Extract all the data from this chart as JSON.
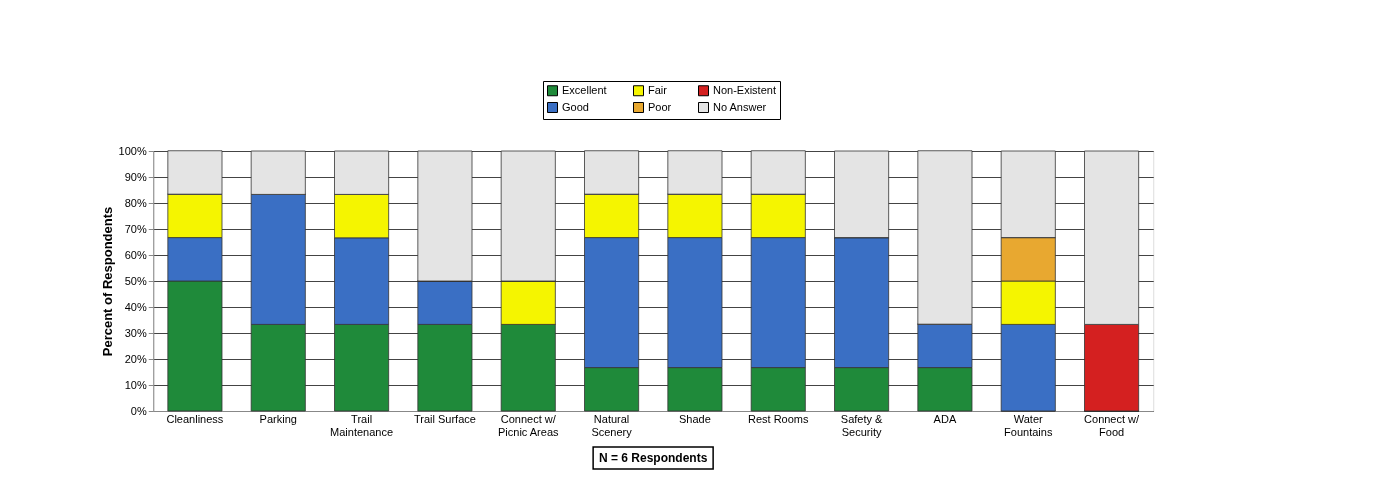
{
  "chart_data": {
    "type": "bar",
    "stacked": true,
    "ylabel": "Percent of Respondents",
    "categories": [
      "Cleanliness",
      "Parking",
      "Trail\nMaintenance",
      "Trail Surface",
      "Connect w/\nPicnic Areas",
      "Natural\nScenery",
      "Shade",
      "Rest Rooms",
      "Safety &\nSecurity",
      "ADA",
      "Water\nFountains",
      "Connect w/\nFood"
    ],
    "series": [
      {
        "name": "Excellent",
        "color": "#1f8a3a",
        "values": [
          50,
          33.3,
          33.3,
          33.3,
          33.3,
          16.7,
          16.7,
          16.7,
          16.7,
          16.7,
          0,
          0
        ]
      },
      {
        "name": "Good",
        "color": "#3a6fc4",
        "values": [
          16.7,
          50,
          33.3,
          16.7,
          0,
          50,
          50,
          50,
          50,
          16.7,
          33.3,
          0
        ]
      },
      {
        "name": "Fair",
        "color": "#f5f500",
        "values": [
          16.7,
          0,
          16.7,
          0,
          16.7,
          16.7,
          16.7,
          16.7,
          0,
          0,
          16.7,
          0
        ]
      },
      {
        "name": "Poor",
        "color": "#e8a830",
        "values": [
          0,
          0,
          0,
          0,
          0,
          0,
          0,
          0,
          0,
          0,
          16.7,
          0
        ]
      },
      {
        "name": "Non-Existent",
        "color": "#d42020",
        "values": [
          0,
          0,
          0,
          0,
          0,
          0,
          0,
          0,
          0,
          0,
          0,
          33.3
        ]
      },
      {
        "name": "No Answer",
        "color": "#e4e4e4",
        "values": [
          16.7,
          16.7,
          16.7,
          50,
          50,
          16.7,
          16.7,
          16.7,
          33.3,
          66.7,
          33.3,
          66.7
        ]
      }
    ],
    "ylim": [
      0,
      100
    ],
    "yticks": [
      {
        "value": 0,
        "label": "0%"
      },
      {
        "value": 10,
        "label": "10%"
      },
      {
        "value": 20,
        "label": "20%"
      },
      {
        "value": 30,
        "label": "30%"
      },
      {
        "value": 40,
        "label": "40%"
      },
      {
        "value": 50,
        "label": "50%"
      },
      {
        "value": 60,
        "label": "60%"
      },
      {
        "value": 70,
        "label": "70%"
      },
      {
        "value": 80,
        "label": "80%"
      },
      {
        "value": 90,
        "label": "90%"
      },
      {
        "value": 100,
        "label": "100%"
      }
    ],
    "grid": "y",
    "legend": "top",
    "annotations": [
      "N = 6 Respondents"
    ]
  }
}
